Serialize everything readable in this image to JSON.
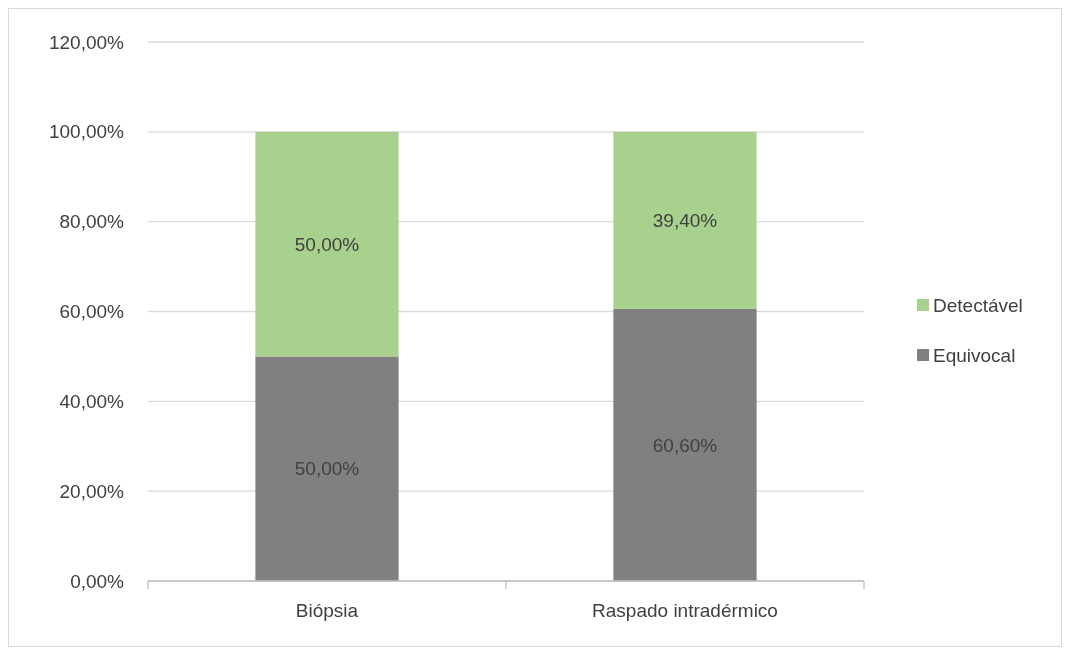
{
  "chart_data": {
    "type": "bar",
    "stacked": true,
    "categories": [
      "Biópsia",
      "Raspado intradérmico"
    ],
    "series": [
      {
        "name": "Equivocal",
        "color": "#808080",
        "values": [
          50,
          60.6
        ],
        "value_labels": [
          "50,00%",
          "60,60%"
        ]
      },
      {
        "name": "Detectável",
        "color": "#a9d18e",
        "values": [
          50,
          39.4
        ],
        "value_labels": [
          "50,00%",
          "39,40%"
        ]
      }
    ],
    "ylim": [
      0,
      120
    ],
    "yticks": [
      {
        "value": 0,
        "label": "0,00%"
      },
      {
        "value": 20,
        "label": "20,00%"
      },
      {
        "value": 40,
        "label": "40,00%"
      },
      {
        "value": 60,
        "label": "60,00%"
      },
      {
        "value": 80,
        "label": "80,00%"
      },
      {
        "value": 100,
        "label": "100,00%"
      },
      {
        "value": 120,
        "label": "120,00%"
      }
    ],
    "grid": "y",
    "legend": "right"
  }
}
